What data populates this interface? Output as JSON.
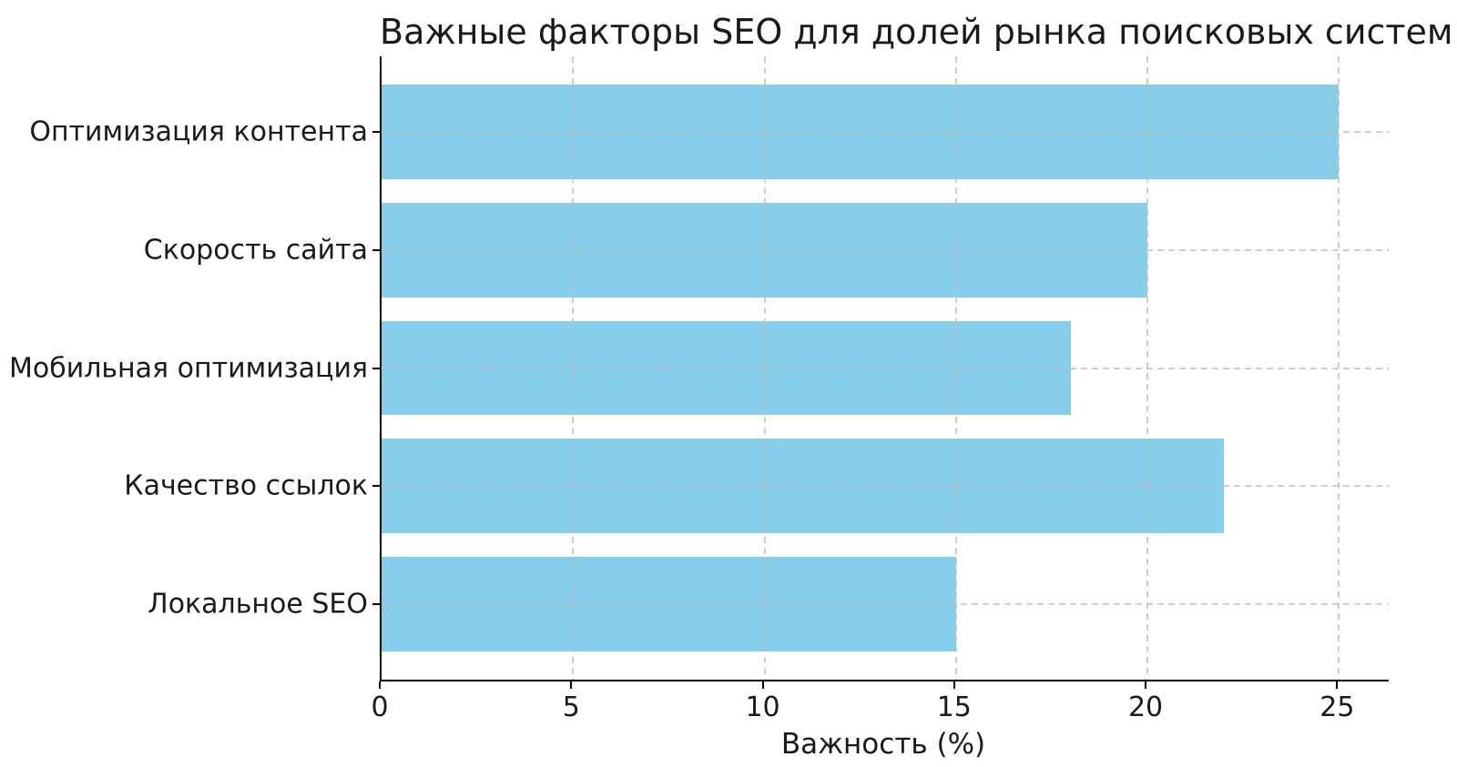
{
  "chart_data": {
    "type": "bar",
    "orientation": "horizontal",
    "title": "Важные факторы SEO для долей рынка поисковых систем",
    "xlabel": "Важность (%)",
    "ylabel": "",
    "categories": [
      "Оптимизация контента",
      "Скорость сайта",
      "Мобильная оптимизация",
      "Качество ссылок",
      "Локальное SEO"
    ],
    "values": [
      25,
      20,
      18,
      22,
      15
    ],
    "x_ticks": [
      0,
      5,
      10,
      15,
      20,
      25
    ],
    "xlim": [
      0,
      26.3
    ],
    "bar_color": "#87CEEB",
    "axis_color": "#000000",
    "grid": "dashed",
    "grid_color": "#c9c9c9",
    "legend": "none",
    "bar_height_frac": 0.8
  }
}
